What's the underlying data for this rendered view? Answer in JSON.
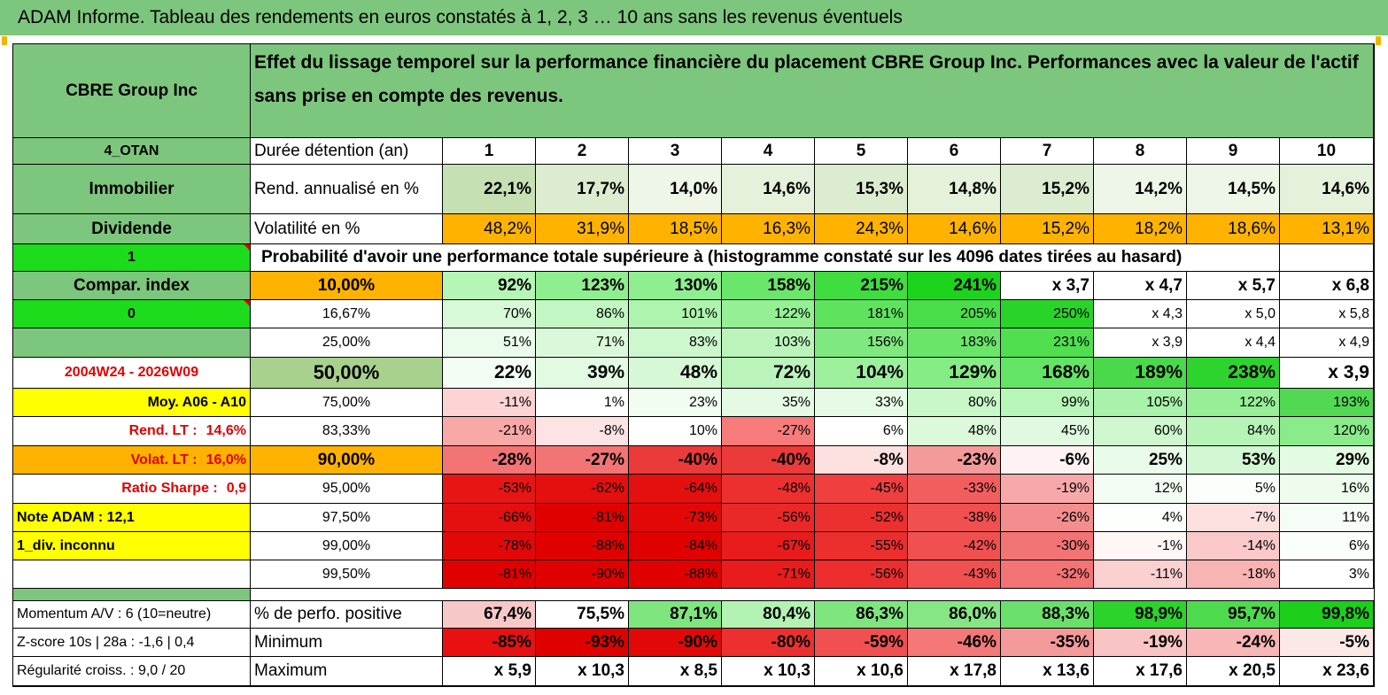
{
  "title": "ADAM Informe. Tableau des rendements en euros constatés à 1, 2, 3 … 10 ans sans les revenus éventuels",
  "header": {
    "company": "CBRE Group Inc",
    "description": "Effet du lissage temporel sur la performance financière du placement CBRE Group Inc. Performances avec la valeur de l'actif sans prise en compte des revenus."
  },
  "left": {
    "l0": "4_OTAN",
    "l1": "Immobilier",
    "l2": "Dividende",
    "l3": "1",
    "l4": "Compar. index",
    "l5": "0",
    "l6": "",
    "l7": "2004W24 - 2026W09",
    "l8": "Moy. A06 - A10",
    "l9a": "Rend. LT :",
    "l9b": "14,6%",
    "l10a": "Volat. LT :",
    "l10b": "16,0%",
    "l11a": "Ratio Sharpe :",
    "l11b": "0,9",
    "l12": "Note ADAM : 12,1",
    "l13": "1_div. inconnu",
    "l14": "",
    "l15": "",
    "l16": "Momentum A/V : 6 (10=neutre)",
    "l17": "Z-score 10s | 28a : -1,6 | 0,4",
    "l18": "Régularité croiss. : 9,0 / 20"
  },
  "labels": {
    "duration": "Durée détention (an)",
    "return": "Rend. annualisé en %",
    "volatility": "Volatilité en %",
    "probability": "Probabilité d'avoir une performance totale supérieure à (histogramme constaté sur les 4096 dates tirées au hasard)",
    "positive": "% de perfo. positive",
    "minimum": "Minimum",
    "maximum": "Maximum"
  },
  "years": [
    "1",
    "2",
    "3",
    "4",
    "5",
    "6",
    "7",
    "8",
    "9",
    "10"
  ],
  "returns": [
    "22,1%",
    "17,7%",
    "14,0%",
    "14,6%",
    "15,3%",
    "14,8%",
    "15,2%",
    "14,2%",
    "14,5%",
    "14,6%"
  ],
  "volatility": [
    "48,2%",
    "31,9%",
    "18,5%",
    "16,3%",
    "24,3%",
    "14,6%",
    "15,2%",
    "18,2%",
    "18,6%",
    "13,1%"
  ],
  "percentiles": [
    {
      "level": "10,00%",
      "values": [
        "92%",
        "123%",
        "130%",
        "158%",
        "215%",
        "241%",
        "x 3,7",
        "x 4,7",
        "x 5,7",
        "x 6,8"
      ]
    },
    {
      "level": "16,67%",
      "values": [
        "70%",
        "86%",
        "101%",
        "122%",
        "181%",
        "205%",
        "250%",
        "x 4,3",
        "x 5,0",
        "x 5,8"
      ]
    },
    {
      "level": "25,00%",
      "values": [
        "51%",
        "71%",
        "83%",
        "103%",
        "156%",
        "183%",
        "231%",
        "x 3,9",
        "x 4,4",
        "x 4,9"
      ]
    },
    {
      "level": "50,00%",
      "values": [
        "22%",
        "39%",
        "48%",
        "72%",
        "104%",
        "129%",
        "168%",
        "189%",
        "238%",
        "x 3,9"
      ]
    },
    {
      "level": "75,00%",
      "values": [
        "-11%",
        "1%",
        "23%",
        "35%",
        "33%",
        "80%",
        "99%",
        "105%",
        "122%",
        "193%"
      ]
    },
    {
      "level": "83,33%",
      "values": [
        "-21%",
        "-8%",
        "10%",
        "-27%",
        "6%",
        "48%",
        "45%",
        "60%",
        "84%",
        "120%"
      ]
    },
    {
      "level": "90,00%",
      "values": [
        "-28%",
        "-27%",
        "-40%",
        "-40%",
        "-8%",
        "-23%",
        "-6%",
        "25%",
        "53%",
        "29%"
      ]
    },
    {
      "level": "95,00%",
      "values": [
        "-53%",
        "-62%",
        "-64%",
        "-48%",
        "-45%",
        "-33%",
        "-19%",
        "12%",
        "5%",
        "16%"
      ]
    },
    {
      "level": "97,50%",
      "values": [
        "-66%",
        "-81%",
        "-73%",
        "-56%",
        "-52%",
        "-38%",
        "-26%",
        "4%",
        "-7%",
        "11%"
      ]
    },
    {
      "level": "99,00%",
      "values": [
        "-78%",
        "-88%",
        "-84%",
        "-67%",
        "-55%",
        "-42%",
        "-30%",
        "-1%",
        "-14%",
        "6%"
      ]
    },
    {
      "level": "99,50%",
      "values": [
        "-81%",
        "-90%",
        "-88%",
        "-71%",
        "-56%",
        "-43%",
        "-32%",
        "-11%",
        "-18%",
        "3%"
      ]
    }
  ],
  "positive": [
    "67,4%",
    "75,5%",
    "87,1%",
    "80,4%",
    "86,3%",
    "86,0%",
    "88,3%",
    "98,9%",
    "95,7%",
    "99,8%"
  ],
  "minimum": [
    "-85%",
    "-93%",
    "-90%",
    "-80%",
    "-59%",
    "-46%",
    "-35%",
    "-19%",
    "-24%",
    "-5%"
  ],
  "maximum": [
    "x 5,9",
    "x 10,3",
    "x 8,5",
    "x 10,3",
    "x 10,6",
    "x 17,8",
    "x 13,6",
    "x 17,6",
    "x 20,5",
    "x 23,6"
  ],
  "colors": {
    "green_header": "#7dc67d",
    "green_bright": "#1bdb1b",
    "yellow": "#ffff00",
    "orange": "#ffb300",
    "red": "#e00000"
  },
  "cell_colors": {
    "returns": [
      "#c6e0b4",
      "#dcecd0",
      "#eef6e8",
      "#e6f1dc",
      "#dcecd0",
      "#e6f1dc",
      "#dcecd0",
      "#eef6e8",
      "#eef6e8",
      "#e6f1dc"
    ],
    "volatility": [
      "#ffb300",
      "#ffb300",
      "#ffb300",
      "#ffb300",
      "#ffb300",
      "#ffb300",
      "#ffb300",
      "#ffb300",
      "#ffb300",
      "#ffb300"
    ],
    "percentiles": [
      [
        "#b5f5b5",
        "#8fee8f",
        "#8fee8f",
        "#6ae66a",
        "#3fdd3f",
        "#1bd41b",
        "#ffffff",
        "#ffffff",
        "#ffffff",
        "#ffffff"
      ],
      [
        "#d8f9d8",
        "#c2f6c2",
        "#aef3ae",
        "#95ef95",
        "#5fe35f",
        "#4add4a",
        "#28d428",
        "#ffffff",
        "#ffffff",
        "#ffffff"
      ],
      [
        "#ecfcec",
        "#daf9da",
        "#cdf7cd",
        "#baf4ba",
        "#7fe87f",
        "#6ae56a",
        "#4fdf4f",
        "#ffffff",
        "#ffffff",
        "#ffffff"
      ],
      [
        "#f4fdf4",
        "#e2fae2",
        "#d6f8d6",
        "#baf4ba",
        "#9cf09c",
        "#86ec86",
        "#64e464",
        "#4ad94a",
        "#2ed42e",
        "#ffffff"
      ],
      [
        "#fdd4d4",
        "#ffffff",
        "#f2fdf2",
        "#e4fae4",
        "#e6fbe6",
        "#c8f7c8",
        "#b8f5b8",
        "#a9f2a9",
        "#96ef96",
        "#52d852"
      ],
      [
        "#f9a8a8",
        "#fde3e3",
        "#ffffff",
        "#f77b7b",
        "#ffffff",
        "#dcf9dc",
        "#e0fae0",
        "#cef7ce",
        "#b6f3b6",
        "#8aeb8a"
      ],
      [
        "#f27474",
        "#f27474",
        "#ea3a3a",
        "#ea3a3a",
        "#fde1e1",
        "#f49a9a",
        "#fff2f2",
        "#e9fbe9",
        "#d2f7d2",
        "#e3fae3"
      ],
      [
        "#e81515",
        "#e40f0f",
        "#e40f0f",
        "#ec3030",
        "#ef3f3f",
        "#f25e5e",
        "#f7a9a9",
        "#f4fdf4",
        "#fbfffb",
        "#eefcee"
      ],
      [
        "#e40f0f",
        "#e00000",
        "#e20808",
        "#ea2828",
        "#ec3030",
        "#f05050",
        "#f48e8e",
        "#fcfffc",
        "#fde0e0",
        "#f6fdf6"
      ],
      [
        "#e20808",
        "#e00000",
        "#e00000",
        "#e81c1c",
        "#ec2e2e",
        "#f05050",
        "#f27474",
        "#fff6f6",
        "#fac8c8",
        "#fbfffb"
      ],
      [
        "#e00000",
        "#e00000",
        "#e00000",
        "#e81c1c",
        "#ec2e2e",
        "#f05050",
        "#f27474",
        "#fbd0d0",
        "#f8b3b3",
        "#ffffff"
      ]
    ],
    "positive": [
      "#f7c8c8",
      "#ffffff",
      "#7fe57f",
      "#b2f2b2",
      "#7fe57f",
      "#86e686",
      "#6ae06a",
      "#2bd32b",
      "#4ddb4d",
      "#1bcf1b"
    ],
    "minimum": [
      "#e81010",
      "#e00000",
      "#e20808",
      "#ec3030",
      "#f05050",
      "#f47878",
      "#f59a9a",
      "#fbc4c4",
      "#f9b6b6",
      "#fde8e8"
    ],
    "maximum": [
      "#ffffff",
      "#ffffff",
      "#ffffff",
      "#ffffff",
      "#ffffff",
      "#ffffff",
      "#ffffff",
      "#ffffff",
      "#ffffff",
      "#ffffff"
    ]
  }
}
